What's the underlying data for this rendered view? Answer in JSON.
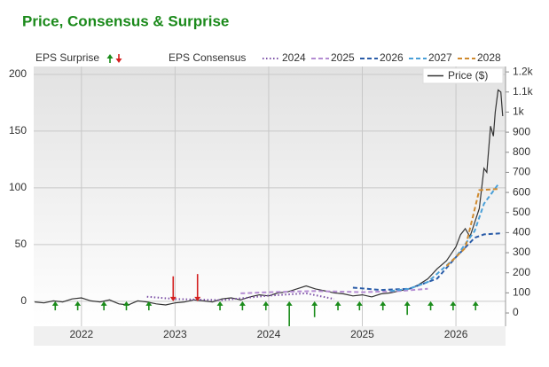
{
  "chart_data": {
    "type": "line",
    "title": "Price, Consensus & Surprise",
    "surprise_label": "EPS Surprise",
    "consensus_label": "EPS Consensus",
    "xlim": [
      2021.49,
      2026.53
    ],
    "xticks": [
      2022,
      2023,
      2024,
      2025,
      2026
    ],
    "ylim": [
      -22,
      207
    ],
    "yticks": [
      0,
      50,
      100,
      150,
      200
    ],
    "y2lim": [
      -66,
      1227
    ],
    "y2ticks": [
      0,
      100,
      200,
      300,
      400,
      500,
      600,
      700,
      800,
      900,
      {
        "value": 1000,
        "label": "1k"
      },
      {
        "value": 1100,
        "label": "1.1k"
      },
      {
        "value": 1200,
        "label": "1.2k"
      }
    ],
    "grid": true,
    "series": [
      {
        "name": "2024",
        "color": "#7b4fa6",
        "dash": "dotted",
        "x": [
          2022.7,
          2023.0,
          2023.5,
          2024.0,
          2024.4,
          2024.7
        ],
        "values": [
          4,
          2,
          1,
          5,
          7,
          2
        ]
      },
      {
        "name": "2025",
        "color": "#b48cd2",
        "dash": "dashed",
        "x": [
          2023.7,
          2024.0,
          2024.5,
          2025.0,
          2025.4,
          2025.7
        ],
        "values": [
          7,
          8,
          9,
          8,
          9,
          11
        ]
      },
      {
        "name": "2026",
        "color": "#2a5ca8",
        "dash": "dashed",
        "x": [
          2024.9,
          2025.2,
          2025.5,
          2025.8,
          2026.0,
          2026.2,
          2026.3,
          2026.5
        ],
        "values": [
          12,
          10,
          11,
          20,
          39,
          56,
          59,
          60
        ]
      },
      {
        "name": "2027",
        "color": "#4aa0d8",
        "dash": "dashed",
        "x": [
          2025.3,
          2025.5,
          2025.7,
          2026.0,
          2026.2,
          2026.3,
          2026.45
        ],
        "values": [
          9,
          11,
          17,
          39,
          62,
          86,
          103
        ]
      },
      {
        "name": "2028",
        "color": "#d08a2e",
        "dash": "dashed",
        "x": [
          2025.9,
          2026.1,
          2026.25,
          2026.45
        ],
        "values": [
          31,
          47,
          98,
          99
        ]
      }
    ],
    "price": {
      "name": "Price ($)",
      "color": "#333333",
      "axis": "y2",
      "x": [
        2021.5,
        2021.6,
        2021.7,
        2021.8,
        2021.9,
        2022.0,
        2022.1,
        2022.2,
        2022.3,
        2022.4,
        2022.5,
        2022.6,
        2022.7,
        2022.8,
        2022.9,
        2023.0,
        2023.1,
        2023.2,
        2023.3,
        2023.4,
        2023.5,
        2023.6,
        2023.7,
        2023.8,
        2023.9,
        2024.0,
        2024.1,
        2024.2,
        2024.3,
        2024.4,
        2024.5,
        2024.6,
        2024.7,
        2024.8,
        2024.9,
        2025.0,
        2025.1,
        2025.2,
        2025.3,
        2025.4,
        2025.5,
        2025.6,
        2025.7,
        2025.8,
        2025.9,
        2026.0,
        2026.05,
        2026.1,
        2026.15,
        2026.2,
        2026.25,
        2026.3,
        2026.33,
        2026.37,
        2026.4,
        2026.42,
        2026.45,
        2026.48,
        2026.5
      ],
      "values": [
        55,
        50,
        60,
        55,
        70,
        75,
        60,
        55,
        65,
        45,
        40,
        60,
        55,
        45,
        40,
        50,
        55,
        65,
        60,
        55,
        70,
        75,
        65,
        80,
        90,
        85,
        100,
        105,
        120,
        135,
        120,
        110,
        100,
        95,
        85,
        90,
        80,
        95,
        100,
        110,
        120,
        140,
        170,
        220,
        260,
        330,
        390,
        420,
        380,
        450,
        520,
        720,
        700,
        930,
        880,
        1000,
        1110,
        1100,
        980
      ]
    },
    "surprise": {
      "up_color": "#1a8c1a",
      "down_color": "#d42020",
      "x": [
        2021.72,
        2021.96,
        2022.24,
        2022.48,
        2022.72,
        2022.98,
        2023.24,
        2023.48,
        2023.72,
        2023.97,
        2024.22,
        2024.49,
        2024.74,
        2024.97,
        2025.22,
        2025.48,
        2025.73,
        2025.97,
        2026.21
      ],
      "values": [
        8,
        8,
        8,
        8,
        8,
        -22,
        -24,
        8,
        8,
        8,
        22,
        14,
        8,
        8,
        8,
        12,
        8,
        8,
        8
      ]
    }
  }
}
